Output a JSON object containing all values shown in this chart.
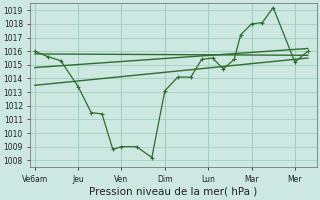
{
  "background_color": "#cce8e0",
  "grid_color": "#99ccbb",
  "line_color": "#2d6e2d",
  "xlabel": "Pression niveau de la mer( hPa )",
  "ylim": [
    1007.5,
    1019.5
  ],
  "yticks": [
    1008,
    1009,
    1010,
    1011,
    1012,
    1013,
    1014,
    1015,
    1016,
    1017,
    1018,
    1019
  ],
  "xtick_labels": [
    "Ve6am",
    "Jeu",
    "Ven",
    "Dim",
    "Lun",
    "Mar",
    "Mer"
  ],
  "xtick_positions": [
    0,
    1,
    2,
    3,
    4,
    5,
    6
  ],
  "xlim": [
    -0.1,
    6.5
  ],
  "main_x": [
    0,
    0.3,
    0.6,
    1.0,
    1.3,
    1.55,
    1.8,
    2.0,
    2.35,
    2.7,
    3.0,
    3.3,
    3.6,
    3.85,
    4.1,
    4.35,
    4.6,
    4.75,
    5.0,
    5.25,
    5.5,
    6.0,
    6.3
  ],
  "main_y": [
    1016.0,
    1015.6,
    1015.3,
    1013.4,
    1011.5,
    1011.4,
    1008.8,
    1009.0,
    1009.0,
    1008.2,
    1013.1,
    1014.1,
    1014.1,
    1015.4,
    1015.5,
    1014.7,
    1015.4,
    1017.2,
    1018.0,
    1018.1,
    1019.2,
    1015.2,
    1016.0
  ],
  "trend1_x": [
    0,
    6.3
  ],
  "trend1_y": [
    1015.8,
    1015.7
  ],
  "trend2_x": [
    0,
    6.3
  ],
  "trend2_y": [
    1014.8,
    1016.2
  ],
  "trend3_x": [
    0,
    6.3
  ],
  "trend3_y": [
    1013.5,
    1015.5
  ],
  "xlabel_fontsize": 7.5,
  "tick_fontsize": 5.5
}
